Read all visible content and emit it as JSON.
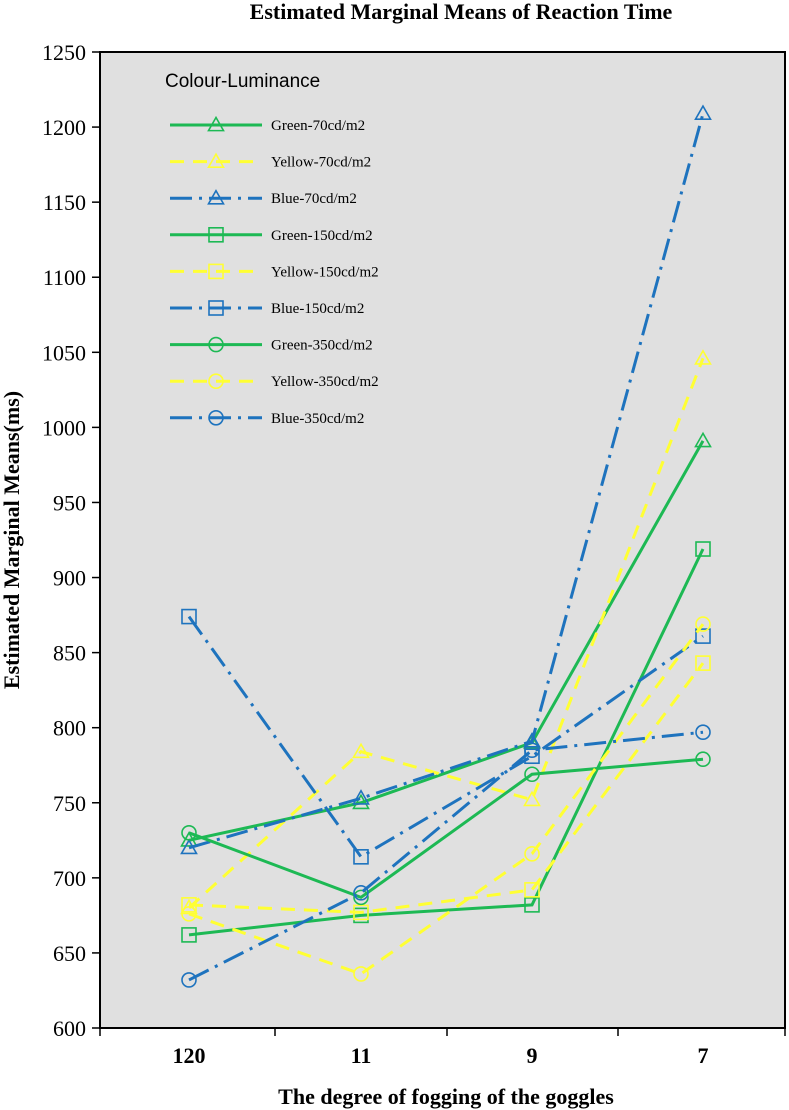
{
  "chart_data": {
    "type": "line",
    "title": "Estimated Marginal Means of Reaction Time",
    "xlabel": "The degree of fogging of the goggles",
    "ylabel": "Estimated Marginal Means(ms)",
    "categories": [
      "120",
      "11",
      "9",
      "7"
    ],
    "ylim": [
      600,
      1250
    ],
    "yticks": [
      600,
      650,
      700,
      750,
      800,
      850,
      900,
      950,
      1000,
      1050,
      1100,
      1150,
      1200,
      1250
    ],
    "grid": false,
    "background_color": "#e0e0e0",
    "legend_title": "Colour-Luminance",
    "legend_position": "top-left",
    "series": [
      {
        "name": "Green-70cd/m2",
        "values": [
          725,
          750,
          790,
          991
        ],
        "color": "#1db954",
        "dash": "solid",
        "marker": "triangle"
      },
      {
        "name": "Yellow-70cd/m2",
        "values": [
          680,
          784,
          752,
          1046
        ],
        "color": "#ffff33",
        "dash": "dash",
        "marker": "triangle"
      },
      {
        "name": "Blue-70cd/m2",
        "values": [
          720,
          753,
          791,
          1209
        ],
        "color": "#1e73be",
        "dash": "dashdot",
        "marker": "triangle"
      },
      {
        "name": "Green-150cd/m2",
        "values": [
          662,
          675,
          682,
          919
        ],
        "color": "#1db954",
        "dash": "solid",
        "marker": "square"
      },
      {
        "name": "Yellow-150cd/m2",
        "values": [
          682,
          677,
          692,
          843
        ],
        "color": "#ffff33",
        "dash": "dash",
        "marker": "square"
      },
      {
        "name": "Blue-150cd/m2",
        "values": [
          874,
          714,
          781,
          861
        ],
        "color": "#1e73be",
        "dash": "dashdot",
        "marker": "square"
      },
      {
        "name": "Green-350cd/m2",
        "values": [
          730,
          687,
          769,
          779
        ],
        "color": "#1db954",
        "dash": "solid",
        "marker": "circle"
      },
      {
        "name": "Yellow-350cd/m2",
        "values": [
          676,
          636,
          716,
          869
        ],
        "color": "#ffff33",
        "dash": "dash",
        "marker": "circle"
      },
      {
        "name": "Blue-350cd/m2",
        "values": [
          632,
          690,
          785,
          797
        ],
        "color": "#1e73be",
        "dash": "dashdot",
        "marker": "circle"
      }
    ]
  }
}
